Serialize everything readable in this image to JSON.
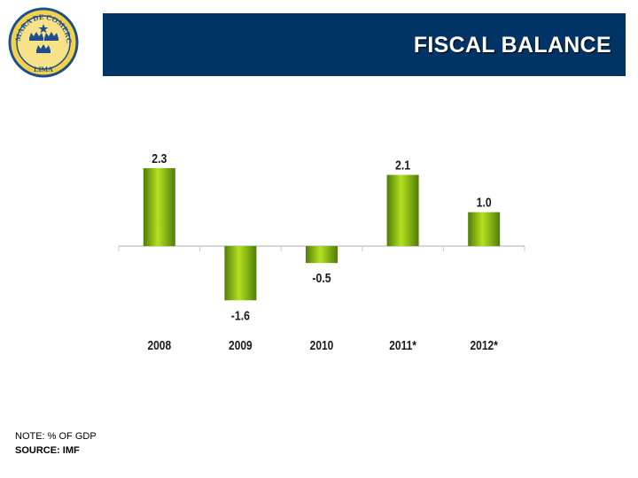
{
  "header": {
    "title": "FISCAL BALANCE",
    "bar_color": "#003366"
  },
  "logo": {
    "text_top": "CAMARA DE COMERCIO",
    "text_bottom": "LIMA",
    "ring_color": "#1f4e8c",
    "fill_color": "#f2d24b"
  },
  "chart_data": {
    "type": "bar",
    "categories": [
      "2008",
      "2009",
      "2010",
      "2011*",
      "2012*"
    ],
    "values": [
      2.3,
      -1.6,
      -0.5,
      2.1,
      1.0
    ],
    "value_labels": [
      "2.3",
      "-1.6",
      "-0.5",
      "2.1",
      "1.0"
    ],
    "title": "",
    "xlabel": "",
    "ylabel": "",
    "ylim": [
      -1.6,
      2.3
    ],
    "grid": false,
    "legend": "none",
    "bar_color": "#6aa30f",
    "bar_highlight": "#b6e021"
  },
  "footer": {
    "note": "NOTE: % OF GDP",
    "source": "SOURCE: IMF"
  }
}
